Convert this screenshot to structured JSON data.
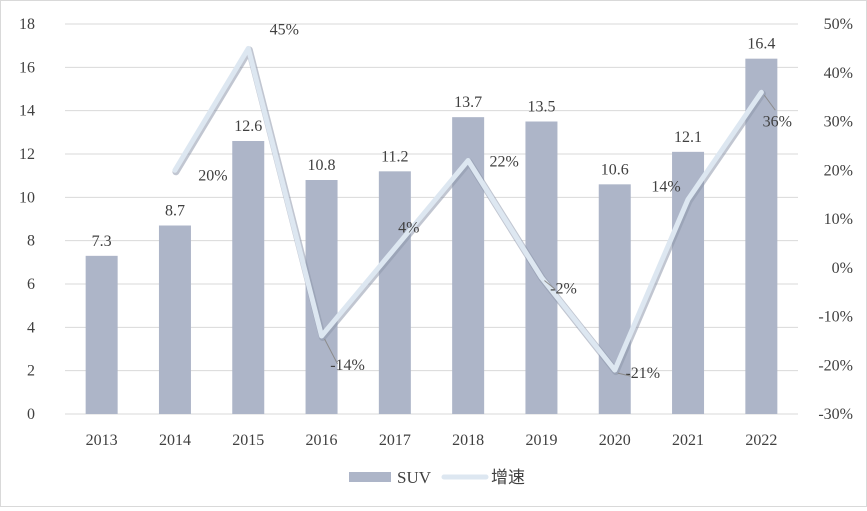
{
  "chart_data": {
    "type": "bar",
    "categories": [
      "2013",
      "2014",
      "2015",
      "2016",
      "2017",
      "2018",
      "2019",
      "2020",
      "2021",
      "2022"
    ],
    "series": [
      {
        "name": "SUV",
        "type": "bar",
        "axis": "left",
        "values": [
          7.3,
          8.7,
          12.6,
          10.8,
          11.2,
          13.7,
          13.5,
          10.6,
          12.1,
          16.4
        ],
        "labels": [
          "7.3",
          "8.7",
          "12.6",
          "10.8",
          "11.2",
          "13.7",
          "13.5",
          "10.6",
          "12.1",
          "16.4"
        ]
      },
      {
        "name": "增速",
        "type": "line",
        "axis": "right",
        "values": [
          null,
          20,
          45,
          -14,
          4,
          22,
          -2,
          -21,
          14,
          36
        ],
        "labels": [
          "",
          "20%",
          "45%",
          "-14%",
          "4%",
          "22%",
          "-2%",
          "-21%",
          "14%",
          "36%"
        ]
      }
    ],
    "y_left": {
      "min": 0,
      "max": 18,
      "ticks": [
        "0",
        "2",
        "4",
        "6",
        "8",
        "10",
        "12",
        "14",
        "16",
        "18"
      ]
    },
    "y_right": {
      "min": -30,
      "max": 50,
      "ticks": [
        "-30%",
        "-20%",
        "-10%",
        "0%",
        "10%",
        "20%",
        "30%",
        "40%",
        "50%"
      ]
    },
    "grid": true,
    "legend": "bottom",
    "colors": {
      "bar": "#adb5c8",
      "line": "#dde7f1",
      "line_shadow": "#8e98ab",
      "grid": "#d9d9d9"
    }
  }
}
